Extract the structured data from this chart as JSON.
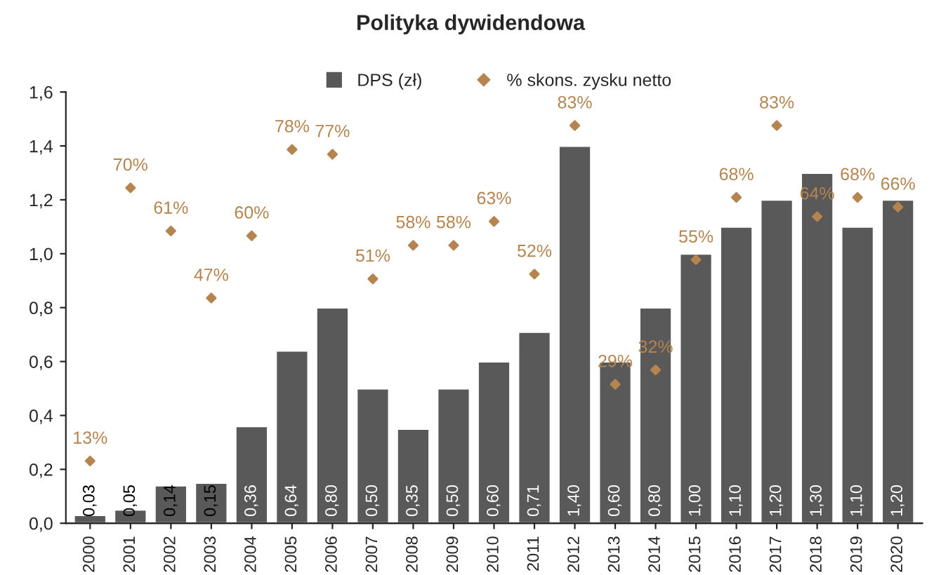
{
  "chart_data": {
    "type": "bar",
    "title": "Polityka dywidendowa",
    "categories": [
      "2000",
      "2001",
      "2002",
      "2003",
      "2004",
      "2005",
      "2006",
      "2007",
      "2008",
      "2009",
      "2010",
      "2011",
      "2012",
      "2013",
      "2014",
      "2015",
      "2016",
      "2017",
      "2018",
      "2019",
      "2020"
    ],
    "series": [
      {
        "name": "DPS (zł)",
        "color": "#595959",
        "values": [
          0.03,
          0.05,
          0.14,
          0.15,
          0.36,
          0.64,
          0.8,
          0.5,
          0.35,
          0.5,
          0.6,
          0.71,
          1.4,
          0.6,
          0.8,
          1.0,
          1.1,
          1.2,
          1.3,
          1.1,
          1.2
        ],
        "value_labels": [
          "0,03",
          "0,05",
          "0,14",
          "0,15",
          "0,36",
          "0,64",
          "0,80",
          "0,50",
          "0,35",
          "0,50",
          "0,60",
          "0,71",
          "1,40",
          "0,60",
          "0,80",
          "1,00",
          "1,10",
          "1,20",
          "1,30",
          "1,10",
          "1,20"
        ]
      },
      {
        "name": "% skons. zysku netto",
        "type": "scatter",
        "axis": "y2",
        "color": "#b5844f",
        "marker": "diamond",
        "values": [
          13,
          70,
          61,
          47,
          60,
          78,
          77,
          51,
          58,
          58,
          63,
          52,
          83,
          29,
          32,
          55,
          68,
          83,
          64,
          68,
          66
        ],
        "value_labels": [
          "13%",
          "70%",
          "61%",
          "47%",
          "60%",
          "78%",
          "77%",
          "51%",
          "58%",
          "58%",
          "63%",
          "52%",
          "83%",
          "29%",
          "32%",
          "55%",
          "68%",
          "83%",
          "64%",
          "68%",
          "66%"
        ]
      }
    ],
    "ylim": [
      0,
      1.6
    ],
    "yticks": [
      {
        "value": 0,
        "label": "0,0"
      },
      {
        "value": 0.2,
        "label": "0,2"
      },
      {
        "value": 0.4,
        "label": "0,4"
      },
      {
        "value": 0.6,
        "label": "0,6"
      },
      {
        "value": 0.8,
        "label": "0,8"
      },
      {
        "value": 1.0,
        "label": "1,0"
      },
      {
        "value": 1.2,
        "label": "1,2"
      },
      {
        "value": 1.4,
        "label": "1,4"
      },
      {
        "value": 1.6,
        "label": "1,6"
      }
    ],
    "y2lim": [
      0,
      90
    ],
    "legend": "top",
    "grid": false
  }
}
